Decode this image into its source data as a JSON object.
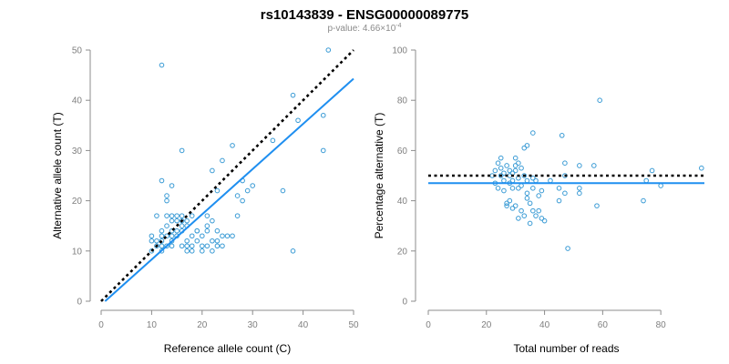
{
  "title": "rs10143839 - ENSG00000089775",
  "subtitle": "p-value: 4.66×10",
  "subtitle_exp": "-4",
  "colors": {
    "points": "#3a9bd5",
    "fit": "#1f8ff0",
    "reference": "#000000",
    "axis": "#8c8c8c"
  },
  "chart_data": [
    {
      "type": "scatter",
      "xlabel": "Reference allele count (C)",
      "ylabel": "Alternative allele count (T)",
      "xlim": [
        0,
        50
      ],
      "ylim": [
        0,
        50
      ],
      "xticks": [
        0,
        10,
        20,
        30,
        40,
        50
      ],
      "yticks": [
        0,
        10,
        20,
        30,
        40,
        50
      ],
      "grid": false,
      "points": [
        [
          10,
          10
        ],
        [
          10,
          12
        ],
        [
          10,
          13
        ],
        [
          11,
          11
        ],
        [
          11,
          12
        ],
        [
          11,
          17
        ],
        [
          12,
          10
        ],
        [
          12,
          11
        ],
        [
          12,
          12
        ],
        [
          12,
          13
        ],
        [
          12,
          14
        ],
        [
          13,
          11
        ],
        [
          13,
          13
        ],
        [
          13,
          15
        ],
        [
          13,
          17
        ],
        [
          13,
          20
        ],
        [
          13,
          21
        ],
        [
          14,
          11
        ],
        [
          14,
          12
        ],
        [
          14,
          13
        ],
        [
          14,
          14
        ],
        [
          14,
          16
        ],
        [
          14,
          17
        ],
        [
          15,
          13
        ],
        [
          15,
          14
        ],
        [
          15,
          16
        ],
        [
          15,
          17
        ],
        [
          16,
          11
        ],
        [
          16,
          14
        ],
        [
          16,
          15
        ],
        [
          16,
          16
        ],
        [
          16,
          17
        ],
        [
          16,
          30
        ],
        [
          17,
          10
        ],
        [
          17,
          11
        ],
        [
          17,
          12
        ],
        [
          17,
          15
        ],
        [
          17,
          16
        ],
        [
          18,
          10
        ],
        [
          18,
          11
        ],
        [
          18,
          13
        ],
        [
          18,
          17
        ],
        [
          19,
          12
        ],
        [
          19,
          14
        ],
        [
          20,
          10
        ],
        [
          20,
          11
        ],
        [
          20,
          13
        ],
        [
          21,
          11
        ],
        [
          21,
          14
        ],
        [
          21,
          15
        ],
        [
          21,
          17
        ],
        [
          22,
          10
        ],
        [
          22,
          12
        ],
        [
          22,
          16
        ],
        [
          22,
          26
        ],
        [
          23,
          11
        ],
        [
          23,
          12
        ],
        [
          23,
          14
        ],
        [
          23,
          22
        ],
        [
          24,
          11
        ],
        [
          24,
          13
        ],
        [
          24,
          28
        ],
        [
          25,
          13
        ],
        [
          26,
          13
        ],
        [
          26,
          31
        ],
        [
          27,
          17
        ],
        [
          27,
          21
        ],
        [
          28,
          20
        ],
        [
          28,
          24
        ],
        [
          29,
          22
        ],
        [
          30,
          23
        ],
        [
          34,
          32
        ],
        [
          36,
          22
        ],
        [
          38,
          10
        ],
        [
          38,
          41
        ],
        [
          39,
          36
        ],
        [
          44,
          30
        ],
        [
          44,
          37
        ],
        [
          45,
          50
        ],
        [
          12,
          47
        ],
        [
          12,
          24
        ],
        [
          14,
          23
        ],
        [
          19,
          14
        ]
      ],
      "reference_line": {
        "style": "dotted",
        "x": [
          0,
          50
        ],
        "y": [
          0,
          50
        ]
      },
      "fit_line": {
        "style": "solid",
        "x": [
          0,
          50
        ],
        "y": [
          -0.7,
          44.3
        ]
      }
    },
    {
      "type": "scatter",
      "xlabel": "Total number of reads",
      "ylabel": "Percentage alternative (T)",
      "xlim": [
        0,
        95
      ],
      "ylim": [
        0,
        100
      ],
      "xticks": [
        0,
        20,
        40,
        60,
        80
      ],
      "yticks": [
        0,
        20,
        40,
        60,
        80,
        100
      ],
      "grid": false,
      "points": [
        [
          22,
          50
        ],
        [
          23,
          52
        ],
        [
          23,
          47
        ],
        [
          24,
          55
        ],
        [
          24,
          45
        ],
        [
          25,
          50
        ],
        [
          25,
          53
        ],
        [
          25,
          57
        ],
        [
          26,
          48
        ],
        [
          26,
          44
        ],
        [
          26,
          51
        ],
        [
          27,
          54
        ],
        [
          27,
          38
        ],
        [
          27,
          39
        ],
        [
          28,
          47
        ],
        [
          28,
          50
        ],
        [
          28,
          52
        ],
        [
          28,
          40
        ],
        [
          29,
          37
        ],
        [
          29,
          45
        ],
        [
          29,
          48
        ],
        [
          29,
          51
        ],
        [
          30,
          54
        ],
        [
          30,
          57
        ],
        [
          30,
          52
        ],
        [
          30,
          38
        ],
        [
          31,
          49
        ],
        [
          31,
          45
        ],
        [
          31,
          55
        ],
        [
          31,
          33
        ],
        [
          32,
          36
        ],
        [
          32,
          53
        ],
        [
          32,
          46
        ],
        [
          33,
          50
        ],
        [
          33,
          34
        ],
        [
          33,
          61
        ],
        [
          34,
          43
        ],
        [
          34,
          48
        ],
        [
          34,
          41
        ],
        [
          34,
          62
        ],
        [
          35,
          31
        ],
        [
          35,
          39
        ],
        [
          36,
          45
        ],
        [
          36,
          49
        ],
        [
          36,
          36
        ],
        [
          36,
          67
        ],
        [
          37,
          48
        ],
        [
          37,
          34
        ],
        [
          38,
          42
        ],
        [
          38,
          36
        ],
        [
          39,
          33
        ],
        [
          39,
          44
        ],
        [
          40,
          32
        ],
        [
          42,
          48
        ],
        [
          45,
          45
        ],
        [
          45,
          40
        ],
        [
          46,
          66
        ],
        [
          47,
          55
        ],
        [
          47,
          50
        ],
        [
          47,
          43
        ],
        [
          48,
          21
        ],
        [
          52,
          45
        ],
        [
          52,
          43
        ],
        [
          52,
          54
        ],
        [
          57,
          54
        ],
        [
          58,
          38
        ],
        [
          59,
          80
        ],
        [
          74,
          40
        ],
        [
          75,
          48
        ],
        [
          77,
          52
        ],
        [
          80,
          46
        ],
        [
          94,
          53
        ]
      ],
      "reference_line": {
        "style": "dotted",
        "x": [
          0,
          95
        ],
        "y": [
          50,
          50
        ]
      },
      "fit_line": {
        "style": "solid",
        "x": [
          0,
          95
        ],
        "y": [
          47,
          47
        ]
      }
    }
  ]
}
